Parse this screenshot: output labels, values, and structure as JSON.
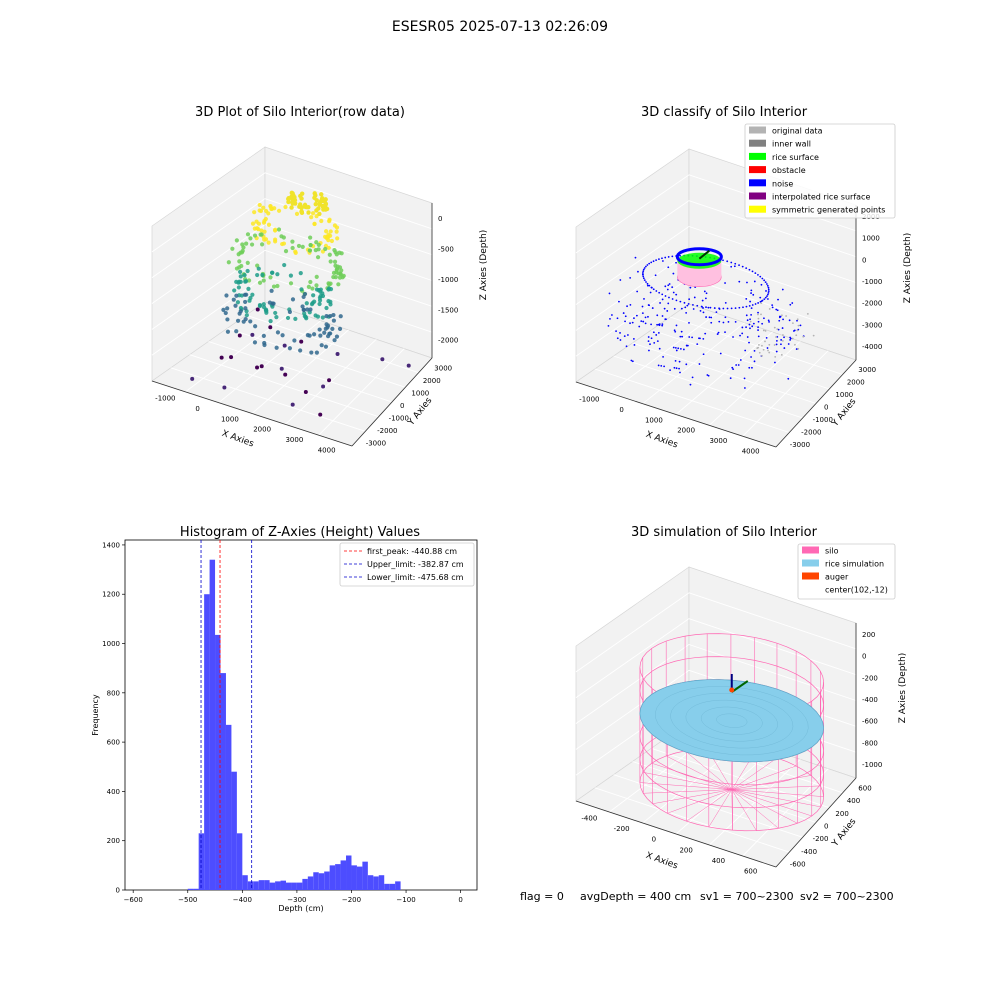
{
  "suptitle": "ESESR05 2025-07-13 02:26:09",
  "status_line": {
    "flag": "flag = 0",
    "avg_depth": "avgDepth = 400 cm",
    "sv1": "sv1 = 700~2300",
    "sv2": "sv2 = 700~2300"
  },
  "colors": {
    "hist_bar": "#4d4dff",
    "first_peak_line": "#ff0000",
    "limit_lines": "#0000cc",
    "pane": "#f2f2f2",
    "silo": "#ff69b4",
    "rice": "#87ceeb",
    "auger": "#ff4500",
    "noise": "#0000ff",
    "rice_surface": "#00ff00",
    "inner_wall": "#808080",
    "original": "#b3b3b3",
    "interpolated": "#800080",
    "symmetric": "#ffff00"
  },
  "chart_data": [
    {
      "type": "scatter",
      "title": "3D Plot of Silo Interior(row data)",
      "xlabel": "X Axies",
      "ylabel": "Y Axies",
      "zlabel": "Z Axies (Depth)",
      "xticks": [
        "-1000",
        "0",
        "1000",
        "2000",
        "3000",
        "4000"
      ],
      "yticks": [
        "-3000",
        "-2000",
        "-1000",
        "0",
        "1000",
        "2000",
        "3000"
      ],
      "zticks": [
        "-2000",
        "-1500",
        "-1000",
        "-500",
        "0"
      ],
      "xlim": [
        -1500,
        4500
      ],
      "ylim": [
        -3500,
        3500
      ],
      "zlim": [
        -2300,
        100
      ]
    },
    {
      "type": "scatter",
      "title": "3D classify of Silo Interior",
      "xlabel": "X Axies",
      "ylabel": "Y Axies",
      "zlabel": "Z Axies (Depth)",
      "xticks": [
        "-1000",
        "0",
        "1000",
        "2000",
        "3000",
        "4000"
      ],
      "yticks": [
        "-3000",
        "-2000",
        "-1000",
        "0",
        "1000",
        "2000",
        "3000"
      ],
      "zticks": [
        "-4000",
        "-3000",
        "-2000",
        "-1000",
        "0",
        "1000",
        "2000"
      ],
      "xlim": [
        -1500,
        4500
      ],
      "ylim": [
        -3500,
        3500
      ],
      "zlim": [
        -4200,
        2200
      ],
      "legend_position": "top-right",
      "legend": [
        {
          "label": "original data",
          "color": "#b3b3b3"
        },
        {
          "label": "inner wall",
          "color": "#808080"
        },
        {
          "label": "rice surface",
          "color": "#00ff00"
        },
        {
          "label": "obstacle",
          "color": "#ff0000"
        },
        {
          "label": "noise",
          "color": "#0000ff"
        },
        {
          "label": "interpolated rice surface",
          "color": "#800080"
        },
        {
          "label": "symmetric generated points",
          "color": "#ffff00"
        }
      ]
    },
    {
      "type": "bar",
      "title": "Histogram of Z-Axies (Height) Values",
      "xlabel": "Depth (cm)",
      "ylabel": "Frequency",
      "xlim": [
        -615,
        30
      ],
      "ylim": [
        0,
        1420
      ],
      "xticks": [
        -600,
        -500,
        -400,
        -300,
        -200,
        -100,
        0
      ],
      "yticks": [
        0,
        200,
        400,
        600,
        800,
        1000,
        1200,
        1400
      ],
      "bin_width": 10,
      "bins": [
        {
          "x0": -500,
          "v": 5
        },
        {
          "x0": -490,
          "v": 5
        },
        {
          "x0": -480,
          "v": 230
        },
        {
          "x0": -470,
          "v": 1200
        },
        {
          "x0": -460,
          "v": 1340
        },
        {
          "x0": -450,
          "v": 1035
        },
        {
          "x0": -440,
          "v": 880
        },
        {
          "x0": -430,
          "v": 670
        },
        {
          "x0": -420,
          "v": 480
        },
        {
          "x0": -410,
          "v": 230
        },
        {
          "x0": -400,
          "v": 60
        },
        {
          "x0": -390,
          "v": 35
        },
        {
          "x0": -380,
          "v": 35
        },
        {
          "x0": -370,
          "v": 40
        },
        {
          "x0": -360,
          "v": 40
        },
        {
          "x0": -350,
          "v": 30
        },
        {
          "x0": -340,
          "v": 35
        },
        {
          "x0": -330,
          "v": 38
        },
        {
          "x0": -320,
          "v": 30
        },
        {
          "x0": -310,
          "v": 30
        },
        {
          "x0": -300,
          "v": 30
        },
        {
          "x0": -290,
          "v": 45
        },
        {
          "x0": -280,
          "v": 55
        },
        {
          "x0": -270,
          "v": 72
        },
        {
          "x0": -260,
          "v": 68
        },
        {
          "x0": -250,
          "v": 75
        },
        {
          "x0": -240,
          "v": 100
        },
        {
          "x0": -230,
          "v": 105
        },
        {
          "x0": -220,
          "v": 120
        },
        {
          "x0": -210,
          "v": 140
        },
        {
          "x0": -200,
          "v": 100
        },
        {
          "x0": -190,
          "v": 95
        },
        {
          "x0": -180,
          "v": 115
        },
        {
          "x0": -170,
          "v": 60
        },
        {
          "x0": -160,
          "v": 55
        },
        {
          "x0": -150,
          "v": 60
        },
        {
          "x0": -140,
          "v": 25
        },
        {
          "x0": -130,
          "v": 25
        },
        {
          "x0": -120,
          "v": 35
        }
      ],
      "vlines": [
        {
          "x": -440.88,
          "color": "#ff0000",
          "label": "first_peak: -440.88 cm"
        },
        {
          "x": -382.87,
          "color": "#0000cc",
          "label": "Upper_limit: -382.87 cm"
        },
        {
          "x": -475.68,
          "color": "#0000cc",
          "label": "Lower_limit: -475.68 cm"
        }
      ],
      "legend_position": "top-right"
    },
    {
      "type": "scatter",
      "title": "3D simulation of Silo Interior",
      "xlabel": "X Axies",
      "ylabel": "Y Axies",
      "zlabel": "Z Axies (Depth)",
      "xticks": [
        "-400",
        "-200",
        "0",
        "200",
        "400",
        "600"
      ],
      "yticks": [
        "-600",
        "-400",
        "-200",
        "0",
        "200",
        "400",
        "600"
      ],
      "zticks": [
        "-1000",
        "-800",
        "-600",
        "-400",
        "-200",
        "0",
        "200"
      ],
      "xlim": [
        -550,
        750
      ],
      "ylim": [
        -650,
        650
      ],
      "zlim": [
        -1050,
        300
      ],
      "legend_position": "top-right",
      "legend": [
        {
          "label": "silo",
          "color": "#ff69b4"
        },
        {
          "label": "rice simulation",
          "color": "#87ceeb"
        },
        {
          "label": "auger",
          "color": "#ff4500"
        },
        {
          "label": "center(102,-12)",
          "color": ""
        }
      ]
    }
  ]
}
